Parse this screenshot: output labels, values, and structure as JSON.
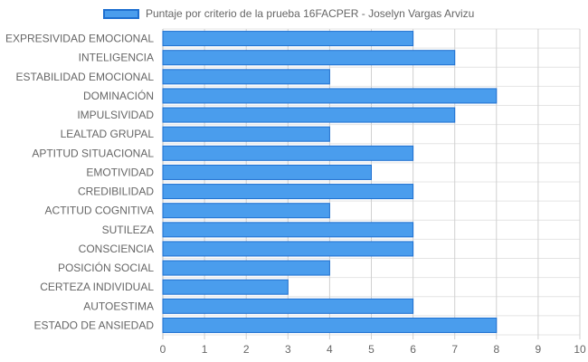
{
  "chart_data": {
    "type": "bar",
    "orientation": "horizontal",
    "legend_position": "top",
    "grid": true,
    "categories": [
      "EXPRESIVIDAD EMOCIONAL",
      "INTELIGENCIA",
      "ESTABILIDAD EMOCIONAL",
      "DOMINACIÓN",
      "IMPULSIVIDAD",
      "LEALTAD GRUPAL",
      "APTITUD SITUACIONAL",
      "EMOTIVIDAD",
      "CREDIBILIDAD",
      "ACTITUD COGNITIVA",
      "SUTILEZA",
      "CONSCIENCIA",
      "POSICIÓN SOCIAL",
      "CERTEZA INDIVIDUAL",
      "AUTOESTIMA",
      "ESTADO DE ANSIEDAD"
    ],
    "series": [
      {
        "name": "Puntaje por criterio de la prueba 16FACPER - Joselyn Vargas Arvizu",
        "values": [
          6,
          7,
          4,
          8,
          7,
          4,
          6,
          5,
          6,
          4,
          6,
          6,
          4,
          3,
          6,
          8
        ]
      }
    ],
    "xlim": [
      0,
      10
    ],
    "xticks": [
      "0",
      "1",
      "2",
      "3",
      "4",
      "5",
      "6",
      "7",
      "8",
      "9",
      "10"
    ],
    "colors": {
      "bar_fill": "#4a9ded",
      "bar_border": "#1e6fd0",
      "grid": "#e4e4e4",
      "tick_text": "#666666"
    }
  }
}
